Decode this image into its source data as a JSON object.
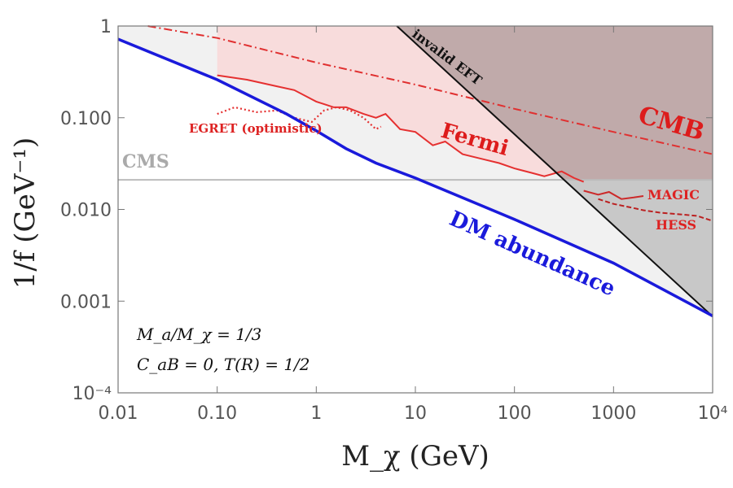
{
  "chart_data": {
    "type": "line",
    "x_scale": "log",
    "y_scale": "log",
    "xlim": [
      0.01,
      10000
    ],
    "ylim": [
      0.0001,
      1
    ],
    "xlabel": "M_χ (GeV)",
    "ylabel": "1/f (GeV⁻¹)",
    "x_ticks": [
      {
        "value": 0.01,
        "label": "0.01"
      },
      {
        "value": 0.1,
        "label": "0.10"
      },
      {
        "value": 1,
        "label": "1"
      },
      {
        "value": 10,
        "label": "10"
      },
      {
        "value": 100,
        "label": "100"
      },
      {
        "value": 1000,
        "label": "1000"
      },
      {
        "value": 10000,
        "label": "10⁴"
      }
    ],
    "y_ticks": [
      {
        "value": 1,
        "label": "1"
      },
      {
        "value": 0.1,
        "label": "0.100"
      },
      {
        "value": 0.01,
        "label": "0.010"
      },
      {
        "value": 0.001,
        "label": "0.001"
      },
      {
        "value": 0.0001,
        "label": "10⁻⁴"
      }
    ],
    "series": [
      {
        "name": "DM abundance",
        "color": "#1a1adb",
        "x": [
          0.01,
          0.1,
          0.5,
          1,
          2,
          4,
          10,
          100,
          1000,
          10000
        ],
        "y": [
          0.72,
          0.26,
          0.11,
          0.072,
          0.046,
          0.032,
          0.022,
          0.0078,
          0.0026,
          0.00069
        ]
      },
      {
        "name": "invalid EFT",
        "color": "#111111",
        "x": [
          6.5,
          10000
        ],
        "y": [
          1,
          0.00068
        ]
      },
      {
        "name": "CMB",
        "color": "#e03030",
        "x": [
          0.02,
          0.1,
          1,
          10,
          100,
          1000,
          10000
        ],
        "y": [
          1,
          0.74,
          0.4,
          0.23,
          0.125,
          0.07,
          0.04
        ]
      },
      {
        "name": "CMS",
        "color": "#bbbbbb",
        "x": [
          0.01,
          10000
        ],
        "y": [
          0.021,
          0.021
        ]
      },
      {
        "name": "Fermi",
        "color": "#e53030",
        "x": [
          0.1,
          0.2,
          0.4,
          0.6,
          1,
          1.5,
          2,
          3,
          4,
          5,
          7,
          10,
          15,
          20,
          30,
          50,
          70,
          100,
          150,
          200,
          300,
          400,
          500
        ],
        "y": [
          0.29,
          0.26,
          0.22,
          0.2,
          0.15,
          0.13,
          0.13,
          0.11,
          0.1,
          0.11,
          0.075,
          0.07,
          0.05,
          0.055,
          0.04,
          0.035,
          0.032,
          0.028,
          0.025,
          0.023,
          0.026,
          0.022,
          0.02
        ]
      },
      {
        "name": "EGRET (optimistic)",
        "color": "#e53030",
        "x": [
          0.1,
          0.15,
          0.25,
          0.4,
          0.6,
          0.9,
          1.2,
          1.6,
          2.2,
          3,
          4,
          4.5
        ],
        "y": [
          0.11,
          0.13,
          0.115,
          0.12,
          0.1,
          0.09,
          0.12,
          0.13,
          0.12,
          0.1,
          0.075,
          0.08
        ]
      },
      {
        "name": "MAGIC",
        "color": "#cc2a2a",
        "x": [
          500,
          700,
          900,
          1200,
          1600,
          2000
        ],
        "y": [
          0.016,
          0.0145,
          0.0155,
          0.013,
          0.0135,
          0.014
        ]
      },
      {
        "name": "HESS",
        "color": "#bb2020",
        "x": [
          700,
          1000,
          1500,
          2000,
          3000,
          5000,
          7000,
          10000
        ],
        "y": [
          0.013,
          0.0115,
          0.0105,
          0.0098,
          0.0092,
          0.0088,
          0.0085,
          0.0075
        ]
      }
    ],
    "region_labels": {
      "dm": "DM abundance",
      "fermi": "Fermi",
      "cmb": "CMB",
      "cms": "CMS",
      "egret": "EGRET (optimistic)",
      "magic": "MAGIC",
      "hess": "HESS",
      "eft": "invalid EFT"
    },
    "annotations": {
      "ratio": "M_a/M_χ = 1/3",
      "coupling": "C_aB = 0, T(R) = 1/2"
    },
    "colors": {
      "fermi_fill": "#f8dcdc",
      "eft_fill": "#c0aaaa",
      "grey_fill": "#f1f1f1",
      "dark_grey_fill": "#c8c8c8",
      "dm": "#1a1adb",
      "fermi": "#e53030"
    },
    "grid": false,
    "legend": "none"
  }
}
